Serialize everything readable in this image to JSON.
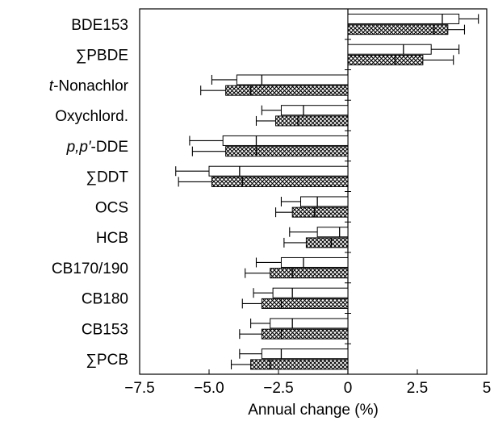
{
  "chart_data": {
    "type": "bar",
    "orientation": "horizontal",
    "title": "",
    "xlabel": "Annual change (%)",
    "ylabel": "",
    "xlim": [
      -7.5,
      5
    ],
    "x_ticks": [
      -7.5,
      -5.0,
      -2.5,
      0,
      2.5,
      5
    ],
    "x_tick_labels": [
      "−7.5",
      "−5.0",
      "−2.5",
      "0",
      "2.5",
      "5"
    ],
    "grid": false,
    "categories": [
      "BDE153",
      "∑PBDE",
      "t-Nonachlor",
      "Oxychlord.",
      "p,p′-DDE",
      "∑DDT",
      "OCS",
      "HCB",
      "CB170/190",
      "CB180",
      "CB153",
      "∑PCB"
    ],
    "category_labels": [
      {
        "parts": [
          {
            "text": "BDE153"
          }
        ]
      },
      {
        "parts": [
          {
            "text": "∑PBDE"
          }
        ]
      },
      {
        "parts": [
          {
            "text": "t",
            "italic": true
          },
          {
            "text": "-Nonachlor"
          }
        ]
      },
      {
        "parts": [
          {
            "text": "Oxychlord."
          }
        ]
      },
      {
        "parts": [
          {
            "text": "p,p′",
            "italic": true
          },
          {
            "text": "-DDE"
          }
        ]
      },
      {
        "parts": [
          {
            "text": "∑DDT"
          }
        ]
      },
      {
        "parts": [
          {
            "text": "OCS"
          }
        ]
      },
      {
        "parts": [
          {
            "text": "HCB"
          }
        ]
      },
      {
        "parts": [
          {
            "text": "CB170/190"
          }
        ]
      },
      {
        "parts": [
          {
            "text": "CB180"
          }
        ]
      },
      {
        "parts": [
          {
            "text": "CB153"
          }
        ]
      },
      {
        "parts": [
          {
            "text": "∑PCB"
          }
        ]
      }
    ],
    "series": [
      {
        "pattern": "white",
        "bars": [
          {
            "outer": 4.0,
            "inner": 3.4,
            "err_hi": 4.7
          },
          {
            "outer": 3.0,
            "inner": 2.0,
            "err_hi": 4.0
          },
          {
            "outer": -4.0,
            "inner": -3.1,
            "err_lo": -4.9
          },
          {
            "outer": -2.4,
            "inner": -1.6,
            "err_lo": -3.1
          },
          {
            "outer": -4.5,
            "inner": -3.3,
            "err_lo": -5.7
          },
          {
            "outer": -5.0,
            "inner": -3.9,
            "err_lo": -6.2
          },
          {
            "outer": -1.7,
            "inner": -1.1,
            "err_lo": -2.4
          },
          {
            "outer": -1.1,
            "inner": -0.3,
            "err_lo": -2.1
          },
          {
            "outer": -2.4,
            "inner": -1.6,
            "err_lo": -3.3
          },
          {
            "outer": -2.7,
            "inner": -2.0,
            "err_lo": -3.4
          },
          {
            "outer": -2.8,
            "inner": -2.0,
            "err_lo": -3.5
          },
          {
            "outer": -3.1,
            "inner": -2.4,
            "err_lo": -3.9
          }
        ]
      },
      {
        "pattern": "crosshatch",
        "bars": [
          {
            "outer": 3.6,
            "inner": 3.1,
            "err_hi": 4.2
          },
          {
            "outer": 2.7,
            "inner": 1.7,
            "err_hi": 3.8
          },
          {
            "outer": -4.4,
            "inner": -3.5,
            "err_lo": -5.3
          },
          {
            "outer": -2.6,
            "inner": -1.8,
            "err_lo": -3.3
          },
          {
            "outer": -4.4,
            "inner": -3.3,
            "err_lo": -5.6
          },
          {
            "outer": -4.9,
            "inner": -3.8,
            "err_lo": -6.1
          },
          {
            "outer": -2.0,
            "inner": -1.2,
            "err_lo": -2.6
          },
          {
            "outer": -1.5,
            "inner": -0.6,
            "err_lo": -2.3
          },
          {
            "outer": -2.8,
            "inner": -2.0,
            "err_lo": -3.7
          },
          {
            "outer": -3.1,
            "inner": -2.4,
            "err_lo": -3.8
          },
          {
            "outer": -3.1,
            "inner": -2.4,
            "err_lo": -3.9
          },
          {
            "outer": -3.5,
            "inner": -2.8,
            "err_lo": -4.2
          }
        ]
      }
    ]
  }
}
